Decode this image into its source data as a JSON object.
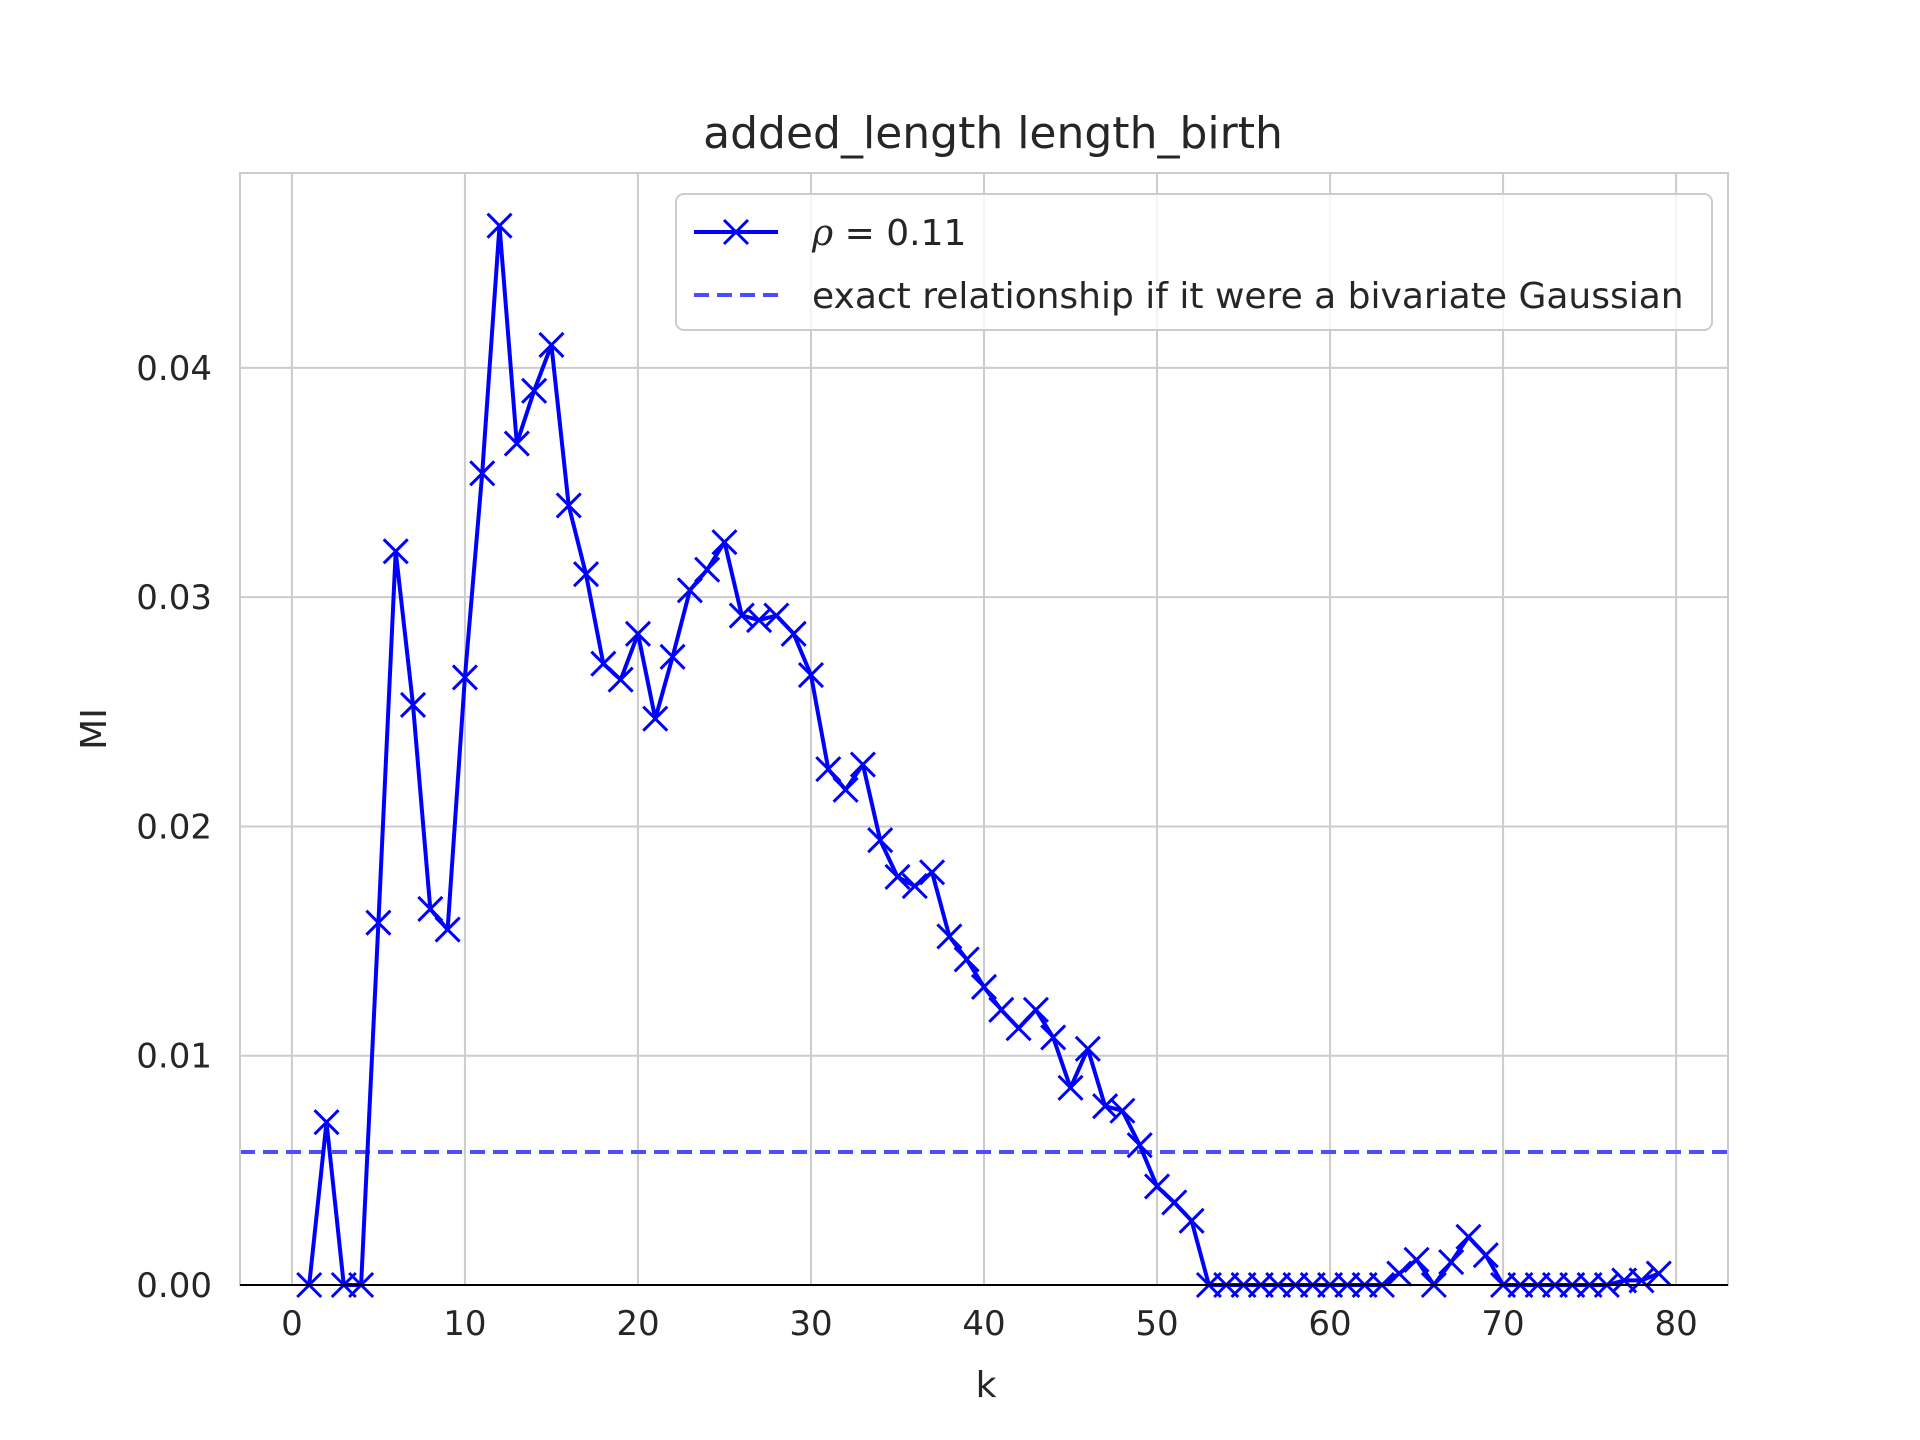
{
  "chart_data": {
    "type": "line",
    "title": "added_length length_birth",
    "xlabel": "k",
    "ylabel": "MI",
    "xlim": [
      -3,
      83
    ],
    "ylim": [
      0,
      0.0485
    ],
    "xticks": [
      0,
      10,
      20,
      30,
      40,
      50,
      60,
      70,
      80
    ],
    "yticks": [
      0.0,
      0.01,
      0.02,
      0.03,
      0.04
    ],
    "ytick_labels": [
      "0.00",
      "0.01",
      "0.02",
      "0.03",
      "0.04"
    ],
    "grid": true,
    "legend_position": "top-right",
    "series": [
      {
        "name": "ρ = 0.11",
        "legend_rho": "ρ",
        "legend_eq": " = 0.11",
        "style": "solid",
        "marker": "x",
        "color": "#0000ff",
        "x": [
          1,
          2,
          3,
          4,
          5,
          6,
          7,
          8,
          9,
          10,
          11,
          12,
          13,
          14,
          15,
          16,
          17,
          18,
          19,
          20,
          21,
          22,
          23,
          24,
          25,
          26,
          27,
          28,
          29,
          30,
          31,
          32,
          33,
          34,
          35,
          36,
          37,
          38,
          39,
          40,
          41,
          42,
          43,
          44,
          45,
          46,
          47,
          48,
          49,
          50,
          51,
          52,
          53,
          54,
          55,
          56,
          57,
          58,
          59,
          60,
          61,
          62,
          63,
          64,
          65,
          66,
          67,
          68,
          69,
          70,
          71,
          72,
          73,
          74,
          75,
          76,
          77,
          78,
          79
        ],
        "y": [
          0.0,
          0.0071,
          0.0,
          0.0,
          0.0158,
          0.032,
          0.0253,
          0.0164,
          0.0155,
          0.0265,
          0.0354,
          0.0462,
          0.0367,
          0.039,
          0.041,
          0.034,
          0.031,
          0.0271,
          0.0264,
          0.0284,
          0.0247,
          0.0274,
          0.0303,
          0.0312,
          0.0324,
          0.0292,
          0.029,
          0.0292,
          0.0284,
          0.0266,
          0.0225,
          0.0216,
          0.0227,
          0.0194,
          0.0178,
          0.0174,
          0.018,
          0.0152,
          0.0142,
          0.013,
          0.012,
          0.0112,
          0.012,
          0.0108,
          0.0086,
          0.0103,
          0.0078,
          0.0076,
          0.0061,
          0.0043,
          0.0036,
          0.0028,
          0.0,
          0.0,
          0.0,
          0.0,
          0.0,
          0.0,
          0.0,
          0.0,
          0.0,
          0.0,
          0.0,
          0.0005,
          0.0011,
          0.0,
          0.001,
          0.0021,
          0.0013,
          0.0,
          0.0,
          0.0,
          0.0,
          0.0,
          0.0,
          0.0,
          0.0002,
          0.0002,
          0.0005
        ]
      },
      {
        "name": "exact relationship if it were a bivariate Gaussian",
        "style": "dashed",
        "color": "#4d4dff",
        "y_constant": 0.0058
      }
    ]
  }
}
